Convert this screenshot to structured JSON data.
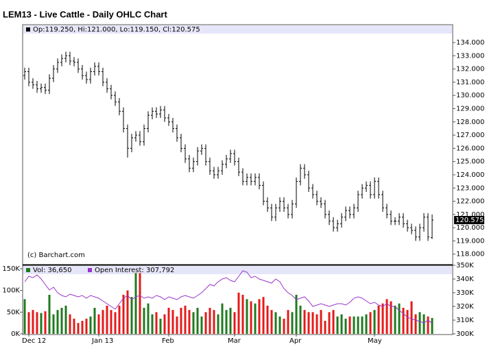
{
  "chart_data": {
    "type": "ohlc",
    "title": "LEM13 - Live Cattle - Daily OHLC Chart",
    "info": "Op:119.250, Hi:121.000, Lo:119.150, Cl:120.575",
    "credit": "(c) Barchart.com",
    "color": "#000000",
    "categories": [
      null,
      "Dec 12",
      null,
      null,
      null,
      null,
      null,
      null,
      null,
      null,
      null,
      null,
      null,
      null,
      null,
      null,
      null,
      null,
      "Jan 13",
      null,
      null,
      null,
      null,
      null,
      null,
      null,
      null,
      null,
      null,
      null,
      null,
      null,
      null,
      null,
      null,
      "Feb",
      null,
      null,
      null,
      null,
      null,
      null,
      null,
      null,
      null,
      null,
      null,
      null,
      null,
      null,
      null,
      "Mar",
      null,
      null,
      null,
      null,
      null,
      null,
      null,
      null,
      null,
      null,
      null,
      null,
      null,
      null,
      "Apr",
      null,
      null,
      null,
      null,
      null,
      null,
      null,
      null,
      null,
      null,
      null,
      null,
      null,
      null,
      null,
      null,
      null,
      null,
      "May",
      null,
      null,
      null,
      null,
      null,
      null,
      null,
      null,
      null,
      null,
      null,
      null,
      null,
      null
    ],
    "open": [
      131.5,
      131.8,
      131.0,
      130.8,
      130.5,
      130.6,
      130.4,
      131.3,
      132.0,
      132.5,
      132.8,
      133.0,
      132.6,
      132.5,
      132.0,
      131.5,
      131.2,
      131.8,
      132.2,
      131.8,
      131.0,
      130.5,
      130.0,
      129.5,
      128.8,
      127.5,
      126.0,
      126.8,
      127.0,
      126.5,
      127.5,
      128.5,
      128.8,
      128.6,
      128.9,
      128.3,
      128.0,
      127.5,
      126.8,
      126.0,
      125.2,
      124.5,
      125.0,
      125.8,
      126.0,
      125.0,
      124.3,
      124.0,
      124.3,
      124.8,
      125.2,
      125.6,
      125.0,
      124.2,
      123.5,
      123.8,
      123.5,
      123.8,
      123.2,
      122.0,
      121.5,
      120.8,
      121.5,
      122.0,
      121.5,
      121.0,
      121.8,
      123.5,
      124.5,
      124.0,
      123.0,
      122.5,
      122.0,
      121.8,
      121.0,
      120.5,
      120.0,
      120.3,
      120.8,
      121.3,
      121.0,
      121.5,
      122.5,
      123.0,
      123.2,
      122.5,
      123.5,
      122.5,
      121.5,
      121.0,
      120.5,
      120.5,
      120.8,
      120.3,
      120.0,
      119.8,
      119.3,
      120.0,
      120.8,
      119.25
    ],
    "high": [
      132.1,
      132.1,
      131.3,
      131.1,
      130.9,
      130.9,
      131.6,
      132.3,
      132.8,
      133.1,
      133.3,
      133.3,
      132.9,
      132.8,
      132.3,
      131.8,
      132.1,
      132.5,
      132.5,
      132.1,
      131.3,
      130.8,
      130.3,
      129.8,
      129.1,
      127.8,
      127.1,
      127.3,
      127.3,
      127.8,
      128.8,
      129.1,
      129.1,
      129.2,
      129.2,
      128.6,
      128.3,
      127.8,
      127.1,
      126.3,
      125.5,
      125.3,
      126.1,
      126.3,
      126.3,
      125.3,
      124.6,
      124.6,
      125.1,
      125.5,
      125.9,
      125.9,
      125.3,
      124.5,
      124.1,
      124.1,
      124.1,
      124.1,
      123.5,
      122.3,
      121.8,
      121.8,
      122.3,
      122.3,
      121.8,
      122.1,
      123.8,
      124.8,
      124.8,
      124.3,
      123.3,
      122.8,
      122.3,
      122.1,
      121.3,
      120.8,
      120.6,
      121.1,
      121.6,
      121.6,
      121.8,
      122.8,
      123.3,
      123.5,
      123.5,
      123.8,
      123.8,
      122.8,
      121.8,
      121.3,
      120.8,
      121.1,
      121.1,
      120.6,
      120.3,
      120.1,
      120.3,
      121.1,
      121.1,
      121.0
    ],
    "low": [
      131.2,
      130.7,
      130.5,
      130.2,
      130.2,
      130.1,
      130.1,
      131.0,
      131.7,
      132.2,
      132.5,
      132.3,
      132.2,
      131.7,
      131.2,
      130.9,
      130.9,
      131.5,
      131.5,
      130.7,
      130.2,
      129.7,
      129.2,
      128.5,
      127.2,
      125.3,
      125.7,
      126.5,
      126.2,
      126.2,
      127.2,
      128.2,
      128.3,
      128.3,
      128.0,
      127.7,
      127.2,
      126.5,
      125.7,
      124.9,
      124.2,
      124.2,
      124.7,
      125.5,
      124.7,
      124.0,
      123.7,
      123.7,
      124.0,
      124.5,
      124.9,
      124.7,
      123.9,
      123.2,
      123.2,
      123.2,
      123.2,
      122.9,
      121.7,
      121.2,
      120.5,
      120.5,
      121.2,
      121.2,
      120.7,
      120.7,
      121.5,
      123.2,
      123.7,
      122.7,
      122.2,
      121.7,
      121.5,
      120.7,
      120.2,
      119.7,
      119.7,
      120.0,
      120.5,
      120.7,
      120.7,
      121.2,
      122.2,
      122.7,
      122.2,
      122.2,
      122.2,
      121.2,
      120.7,
      120.2,
      120.2,
      120.2,
      120.0,
      119.7,
      119.5,
      119.0,
      119.0,
      119.7,
      119.0,
      119.15
    ],
    "close": [
      131.8,
      131.0,
      130.8,
      130.5,
      130.6,
      130.4,
      131.3,
      132.0,
      132.5,
      132.8,
      133.0,
      132.6,
      132.5,
      132.0,
      131.5,
      131.2,
      131.8,
      132.2,
      131.8,
      131.0,
      130.5,
      130.0,
      129.5,
      128.8,
      127.5,
      126.0,
      126.8,
      127.0,
      126.5,
      127.5,
      128.5,
      128.8,
      128.6,
      128.9,
      128.3,
      128.0,
      127.5,
      126.8,
      126.0,
      125.2,
      124.5,
      125.0,
      125.8,
      126.0,
      125.0,
      124.3,
      124.0,
      124.3,
      124.8,
      125.2,
      125.6,
      125.0,
      124.2,
      123.5,
      123.8,
      123.5,
      123.8,
      123.2,
      122.0,
      121.5,
      120.8,
      121.5,
      122.0,
      121.5,
      121.0,
      121.8,
      123.5,
      124.5,
      124.0,
      123.0,
      122.5,
      122.0,
      121.8,
      121.0,
      120.5,
      120.0,
      120.3,
      120.8,
      121.3,
      121.0,
      121.5,
      122.5,
      123.0,
      123.2,
      122.5,
      123.5,
      122.5,
      121.5,
      121.0,
      120.5,
      120.5,
      120.8,
      120.3,
      120.0,
      119.8,
      119.3,
      120.0,
      120.8,
      119.3,
      120.575
    ],
    "ylim": [
      117.26,
      135.35
    ],
    "yticks": [
      {
        "value": 118,
        "label": "118.000"
      },
      {
        "value": 119,
        "label": "119.000"
      },
      {
        "value": 120,
        "label": "120.000"
      },
      {
        "value": 121,
        "label": "121.000"
      },
      {
        "value": 122,
        "label": "122.000"
      },
      {
        "value": 123,
        "label": "123.000"
      },
      {
        "value": 124,
        "label": "124.000"
      },
      {
        "value": 125,
        "label": "125.000"
      },
      {
        "value": 126,
        "label": "126.000"
      },
      {
        "value": 127,
        "label": "127.000"
      },
      {
        "value": 128,
        "label": "128.000"
      },
      {
        "value": 129,
        "label": "129.000"
      },
      {
        "value": 130,
        "label": "130.000"
      },
      {
        "value": 131,
        "label": "131.000"
      },
      {
        "value": 132,
        "label": "132.000"
      },
      {
        "value": 133,
        "label": "133.000"
      },
      {
        "value": 134,
        "label": "134.000"
      }
    ],
    "volume": {
      "label": "Vol: 36,650",
      "up_color": "#1f7a1f",
      "down_color": "#e41a1a",
      "values": [
        80000,
        50000,
        55000,
        50000,
        48000,
        52000,
        90000,
        45000,
        55000,
        60000,
        65000,
        45000,
        35000,
        25000,
        30000,
        35000,
        40000,
        60000,
        45000,
        55000,
        65000,
        55000,
        50000,
        65000,
        90000,
        100000,
        85000,
        140000,
        140000,
        60000,
        70000,
        45000,
        50000,
        35000,
        45000,
        60000,
        55000,
        40000,
        60000,
        65000,
        55000,
        50000,
        60000,
        40000,
        50000,
        60000,
        55000,
        45000,
        70000,
        55000,
        60000,
        50000,
        95000,
        90000,
        80000,
        75000,
        70000,
        80000,
        85000,
        65000,
        55000,
        50000,
        40000,
        35000,
        55000,
        50000,
        90000,
        65000,
        55000,
        50000,
        50000,
        45000,
        55000,
        30000,
        50000,
        55000,
        40000,
        45000,
        35000,
        40000,
        40000,
        40000,
        40000,
        45000,
        50000,
        55000,
        65000,
        70000,
        80000,
        75000,
        65000,
        70000,
        60000,
        55000,
        75000,
        45000,
        50000,
        45000,
        40000,
        36650
      ],
      "ylim": [
        0,
        157900
      ],
      "yticks": [
        {
          "value": 0,
          "label": "0K"
        },
        {
          "value": 50000,
          "label": "50K"
        },
        {
          "value": 100000,
          "label": "100K"
        },
        {
          "value": 150000,
          "label": "150K"
        }
      ]
    },
    "open_interest": {
      "label": "Open Interest: 307,792",
      "color": "#9933cc",
      "values": [
        338000,
        342000,
        341000,
        343000,
        340000,
        336000,
        332000,
        334000,
        330000,
        328000,
        327000,
        329000,
        328000,
        327000,
        328000,
        326000,
        328000,
        327000,
        326000,
        324000,
        322000,
        320000,
        318000,
        322000,
        326000,
        328000,
        325000,
        327000,
        328000,
        326000,
        327000,
        326000,
        328000,
        327000,
        325000,
        327000,
        326000,
        325000,
        327000,
        328000,
        327000,
        326000,
        328000,
        330000,
        333000,
        336000,
        335000,
        338000,
        340000,
        341000,
        339000,
        338000,
        342000,
        346000,
        345000,
        341000,
        342000,
        340000,
        339000,
        338000,
        337000,
        340000,
        338000,
        333000,
        330000,
        328000,
        325000,
        326000,
        327000,
        324000,
        320000,
        321000,
        322000,
        321000,
        320000,
        321000,
        322000,
        322000,
        321000,
        323000,
        326000,
        327000,
        326000,
        324000,
        322000,
        323000,
        321000,
        320000,
        322000,
        320000,
        320000,
        317000,
        315000,
        312000,
        311000,
        310000,
        309000,
        308000,
        310000,
        307792
      ],
      "y2lim": [
        300000,
        350000
      ],
      "y2ticks": [
        {
          "value": 300000,
          "label": "300K"
        },
        {
          "value": 310000,
          "label": "310K"
        },
        {
          "value": 320000,
          "label": "320K"
        },
        {
          "value": 330000,
          "label": "330K"
        },
        {
          "value": 340000,
          "label": "340K"
        },
        {
          "value": 350000,
          "label": "350K"
        }
      ]
    }
  }
}
